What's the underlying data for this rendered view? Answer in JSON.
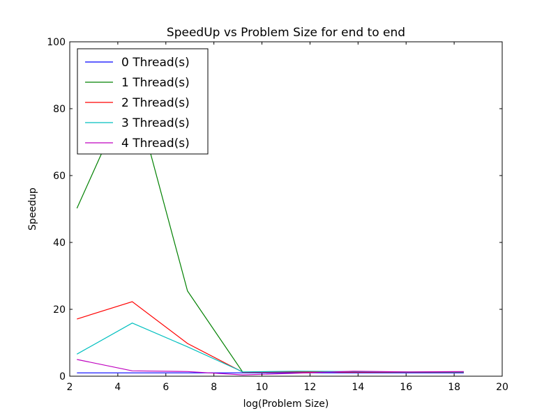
{
  "chart_data": {
    "type": "line",
    "title": "SpeedUp vs Problem Size for end to end",
    "xlabel": "log(Problem Size)",
    "ylabel": "Speedup",
    "xlim": [
      2,
      20
    ],
    "ylim": [
      0,
      100
    ],
    "xticks": [
      2,
      4,
      6,
      8,
      10,
      12,
      14,
      16,
      18,
      20
    ],
    "yticks": [
      0,
      20,
      40,
      60,
      80,
      100
    ],
    "grid": false,
    "legend_position": "top-left",
    "x": [
      2.3,
      4.6,
      6.9,
      9.2,
      11.5,
      13.8,
      16.1,
      18.4
    ],
    "series": [
      {
        "name": "0 Thread(s)",
        "color": "#0000ff",
        "values": [
          1.0,
          1.0,
          1.0,
          1.0,
          1.0,
          1.0,
          1.0,
          1.0
        ]
      },
      {
        "name": "1 Thread(s)",
        "color": "#008000",
        "values": [
          50.2,
          87.0,
          25.5,
          1.2,
          1.3,
          1.3,
          1.2,
          1.2
        ]
      },
      {
        "name": "2 Thread(s)",
        "color": "#ff0000",
        "values": [
          17.1,
          22.3,
          9.8,
          1.2,
          1.3,
          1.2,
          1.2,
          1.2
        ]
      },
      {
        "name": "3 Thread(s)",
        "color": "#00bfbf",
        "values": [
          6.6,
          15.9,
          8.8,
          1.3,
          1.5,
          1.4,
          1.3,
          1.3
        ]
      },
      {
        "name": "4 Thread(s)",
        "color": "#bf00bf",
        "values": [
          5.0,
          1.6,
          1.4,
          0.4,
          0.9,
          1.5,
          1.3,
          1.4
        ]
      }
    ]
  }
}
